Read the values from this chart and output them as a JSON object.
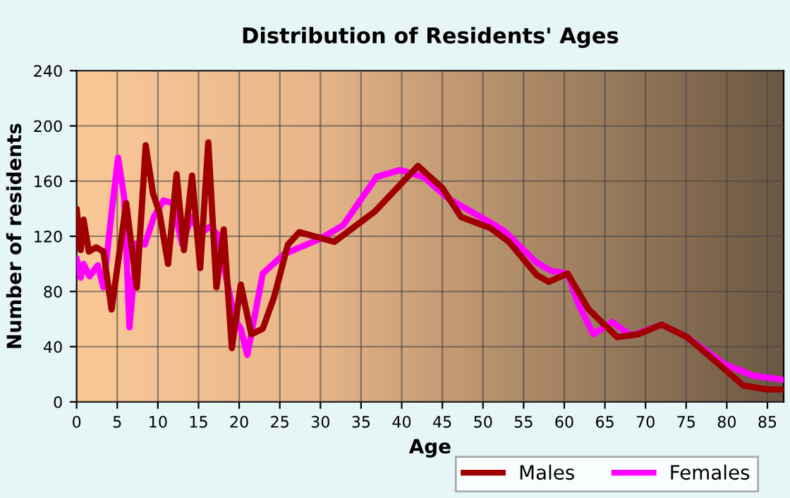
{
  "chart_data": {
    "type": "line",
    "title": "Distribution of Residents' Ages",
    "xlabel": "Age",
    "ylabel": "Number of residents",
    "xlim": [
      0,
      87
    ],
    "xticks": [
      0,
      5,
      10,
      15,
      20,
      25,
      30,
      35,
      40,
      45,
      50,
      55,
      60,
      65,
      70,
      75,
      80,
      85
    ],
    "ylim": [
      0,
      240
    ],
    "yticks": [
      0,
      40,
      80,
      120,
      160,
      200,
      240
    ],
    "grid": true,
    "legend": "bottom",
    "marker": "none",
    "line_style": "solid",
    "series": [
      {
        "name": "Males",
        "color": "#a00000",
        "x": [
          0,
          0.5,
          0.85,
          1.5,
          2.4,
          3.3,
          4.3,
          6.1,
          7.4,
          8.5,
          9.4,
          10.2,
          11.25,
          12.3,
          13.2,
          14.2,
          15.2,
          16.2,
          17.2,
          18.1,
          19.1,
          20.2,
          21.5,
          22.9,
          24.3,
          26,
          27.4,
          31.7,
          36.7,
          42,
          45,
          47.3,
          50.9,
          53.2,
          56.6,
          58.1,
          60.4,
          63,
          66.5,
          69.1,
          72,
          75.1,
          78.5,
          82,
          85,
          87
        ],
        "values": [
          140,
          110,
          132,
          109,
          112,
          109,
          67,
          144,
          83,
          186,
          151,
          137,
          100,
          165,
          110,
          164,
          97,
          188,
          83,
          125,
          39,
          85,
          49,
          53,
          76,
          114,
          123,
          116,
          138,
          171,
          155,
          134,
          126,
          116,
          92,
          87,
          93,
          67,
          47,
          49,
          56,
          47,
          30,
          12,
          9,
          9
        ]
      },
      {
        "name": "Females",
        "color": "#ff00ff",
        "x": [
          0,
          0.5,
          0.85,
          1.6,
          2.6,
          3.3,
          4.3,
          5.1,
          5.85,
          6.5,
          7.4,
          8.4,
          9.5,
          10.7,
          11.8,
          13,
          14.1,
          15.2,
          16.4,
          17.4,
          18.4,
          19.5,
          20.2,
          21,
          22.9,
          25.5,
          29.9,
          32.8,
          36.9,
          39.8,
          42.7,
          45.6,
          49.7,
          52.6,
          56.6,
          58.4,
          60.4,
          61.8,
          63.6,
          65.9,
          68.2,
          72,
          75.1,
          79.8,
          83.3,
          87
        ],
        "values": [
          104,
          90,
          100,
          91,
          99,
          83,
          137,
          177,
          148,
          54,
          115,
          114,
          134,
          146,
          144,
          114,
          134,
          122,
          127,
          121,
          90,
          59,
          53,
          34,
          93,
          107,
          118,
          128,
          163,
          168,
          163,
          148,
          134,
          124,
          101,
          95,
          93,
          70,
          49,
          58,
          48,
          56,
          47,
          27,
          19,
          16
        ]
      }
    ]
  }
}
